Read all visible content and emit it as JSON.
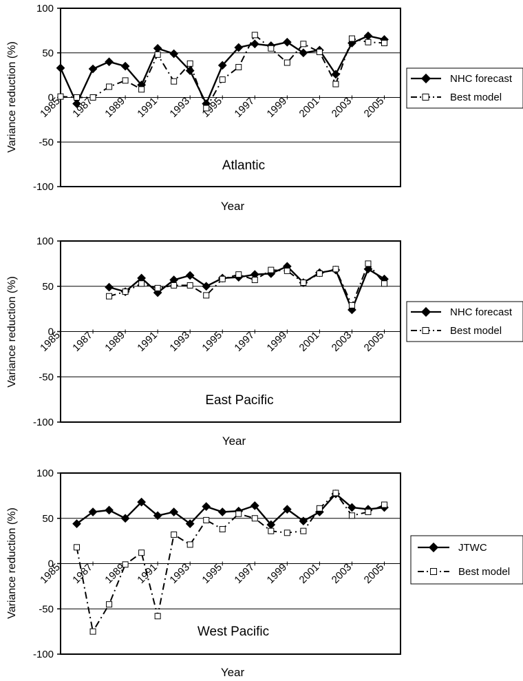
{
  "chart_data": [
    {
      "type": "line",
      "title": "Atlantic",
      "xlabel": "Year",
      "ylabel": "Variance reduction (%)",
      "ylim": [
        -100,
        100
      ],
      "yticks": [
        "100",
        "50",
        "0",
        "-50",
        "-100"
      ],
      "xticks": [
        "1985",
        "1987",
        "1989",
        "1991",
        "1993",
        "1995",
        "1997",
        "1999",
        "2001",
        "2003",
        "2005"
      ],
      "x": [
        1985,
        1986,
        1987,
        1988,
        1989,
        1990,
        1991,
        1992,
        1993,
        1994,
        1995,
        1996,
        1997,
        1998,
        1999,
        2000,
        2001,
        2002,
        2003,
        2004,
        2005
      ],
      "series": [
        {
          "name": "NHC forecast",
          "values": [
            33,
            -7,
            32,
            40,
            35,
            14,
            55,
            49,
            30,
            -7,
            36,
            56,
            60,
            58,
            62,
            50,
            53,
            26,
            61,
            69,
            65
          ]
        },
        {
          "name": "Best model",
          "values": [
            1,
            0,
            0,
            12,
            19,
            9,
            48,
            18,
            38,
            -12,
            20,
            34,
            70,
            55,
            39,
            60,
            51,
            15,
            66,
            62,
            61
          ]
        }
      ],
      "legend": "right",
      "grid": "major y only"
    },
    {
      "type": "line",
      "title": "East Pacific",
      "xlabel": "Year",
      "ylabel": "Variance reduction (%)",
      "ylim": [
        -100,
        100
      ],
      "yticks": [
        "100",
        "50",
        "0",
        "-50",
        "-100"
      ],
      "xticks": [
        "1985",
        "1987",
        "1989",
        "1991",
        "1993",
        "1995",
        "1997",
        "1999",
        "2001",
        "2003",
        "2005"
      ],
      "x": [
        1988,
        1989,
        1990,
        1991,
        1992,
        1993,
        1994,
        1995,
        1996,
        1997,
        1998,
        1999,
        2000,
        2001,
        2002,
        2003,
        2004,
        2005
      ],
      "series": [
        {
          "name": "NHC forecast",
          "values": [
            49,
            44,
            59,
            43,
            57,
            62,
            50,
            59,
            60,
            63,
            64,
            72,
            54,
            65,
            68,
            24,
            69,
            58
          ]
        },
        {
          "name": "Best model",
          "values": [
            39,
            44,
            53,
            48,
            51,
            51,
            40,
            58,
            63,
            57,
            68,
            67,
            54,
            64,
            69,
            29,
            75,
            53
          ]
        }
      ],
      "legend": "right",
      "grid": "major y only"
    },
    {
      "type": "line",
      "title": "West Pacific",
      "xlabel": "Year",
      "ylabel": "Variance reduction (%)",
      "ylim": [
        -100,
        100
      ],
      "yticks": [
        "100",
        "50",
        "0",
        "-50",
        "-100"
      ],
      "xticks": [
        "1985",
        "1987",
        "1989",
        "1991",
        "1993",
        "1995",
        "1997",
        "1999",
        "2001",
        "2003",
        "2005"
      ],
      "x": [
        1986,
        1987,
        1988,
        1989,
        1990,
        1991,
        1992,
        1993,
        1994,
        1995,
        1996,
        1997,
        1998,
        1999,
        2000,
        2001,
        2002,
        2003,
        2004,
        2005
      ],
      "series": [
        {
          "name": "JTWC",
          "values": [
            44,
            57,
            59,
            50,
            68,
            53,
            57,
            44,
            63,
            57,
            58,
            64,
            43,
            60,
            47,
            57,
            77,
            62,
            60,
            62
          ]
        },
        {
          "name": "Best model",
          "values": [
            18,
            -75,
            -45,
            -1,
            12,
            -58,
            32,
            21,
            48,
            38,
            55,
            50,
            36,
            34,
            36,
            61,
            78,
            53,
            57,
            65
          ]
        }
      ],
      "legend": "right",
      "grid": "major y only"
    }
  ]
}
